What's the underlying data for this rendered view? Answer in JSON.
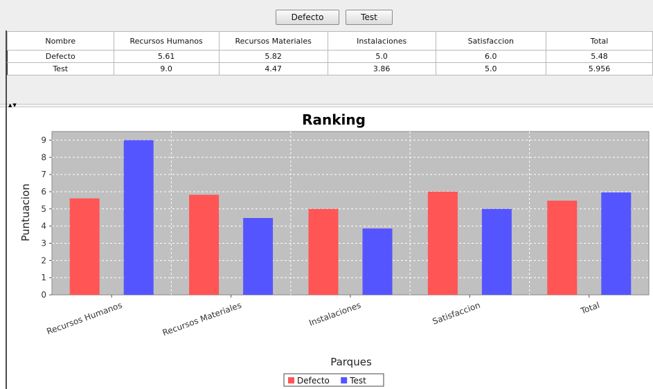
{
  "buttons": {
    "defecto": "Defecto",
    "test": "Test"
  },
  "table": {
    "headers": [
      "Nombre",
      "Recursos Humanos",
      "Recursos Materiales",
      "Instalaciones",
      "Satisfaccion",
      "Total"
    ],
    "rows": [
      [
        "Defecto",
        "5.61",
        "5.82",
        "5.0",
        "6.0",
        "5.48"
      ],
      [
        "Test",
        "9.0",
        "4.47",
        "3.86",
        "5.0",
        "5.956"
      ]
    ]
  },
  "chart_data": {
    "type": "bar",
    "title": "Ranking",
    "xlabel": "Parques",
    "ylabel": "Puntuacion",
    "categories": [
      "Recursos Humanos",
      "Recursos Materiales",
      "Instalaciones",
      "Satisfaccion",
      "Total"
    ],
    "series": [
      {
        "name": "Defecto",
        "color": "#ff5555",
        "values": [
          5.61,
          5.82,
          5.0,
          6.0,
          5.48
        ]
      },
      {
        "name": "Test",
        "color": "#5555ff",
        "values": [
          9.0,
          4.47,
          3.86,
          5.0,
          5.956
        ]
      }
    ],
    "ylim": [
      0,
      9.5
    ],
    "yticks": [
      0,
      1,
      2,
      3,
      4,
      5,
      6,
      7,
      8,
      9
    ],
    "plot_background": "#c0c0c0",
    "grid": true,
    "legend_position": "bottom-center"
  }
}
